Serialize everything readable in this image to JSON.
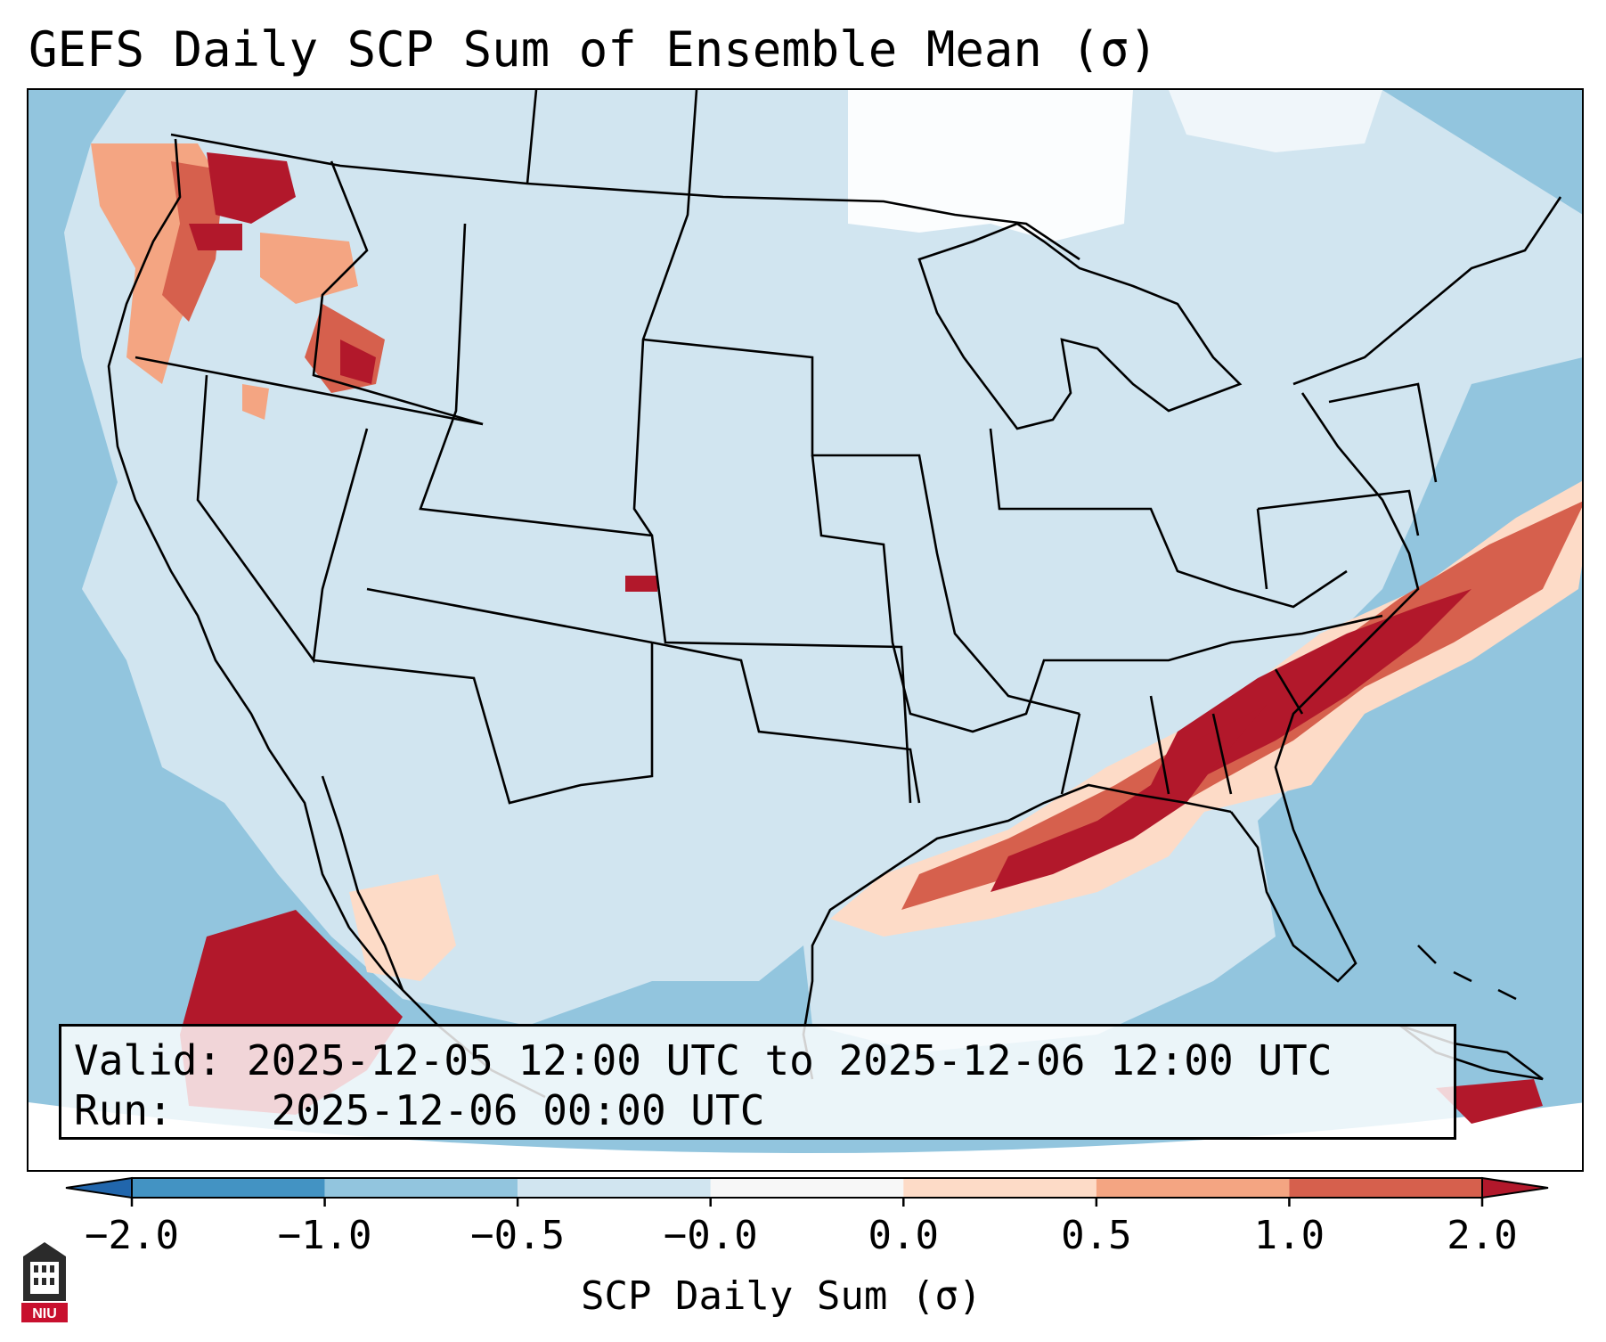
{
  "title": "GEFS Daily SCP Sum of Ensemble Mean (σ)",
  "map": {
    "description_colors": {
      "ocean_deep": "#92c5de",
      "land_neutral": "#d1e5f0",
      "light_positive": "#fddbc7",
      "medium_positive": "#f4a582",
      "high_positive": "#d6604d",
      "very_high": "#b2182b",
      "white": "#f7f7f7"
    }
  },
  "info": {
    "valid_label": "Valid:",
    "valid_value": "2025-12-05 12:00 UTC to 2025-12-06 12:00 UTC",
    "run_label": "Run:",
    "run_value": "2025-12-06 00:00 UTC"
  },
  "colorbar": {
    "label": "SCP Daily Sum (σ)",
    "ticks": [
      "−2.0",
      "−1.0",
      "−0.5",
      "−0.0",
      "0.0",
      "0.5",
      "1.0",
      "2.0"
    ],
    "colors": [
      "#2166ac",
      "#4393c3",
      "#92c5de",
      "#d1e5f0",
      "#f7f7f7",
      "#fddbc7",
      "#f4a582",
      "#d6604d",
      "#b2182b"
    ]
  },
  "logo": {
    "text": "NIU",
    "icon": "university-building-icon"
  }
}
